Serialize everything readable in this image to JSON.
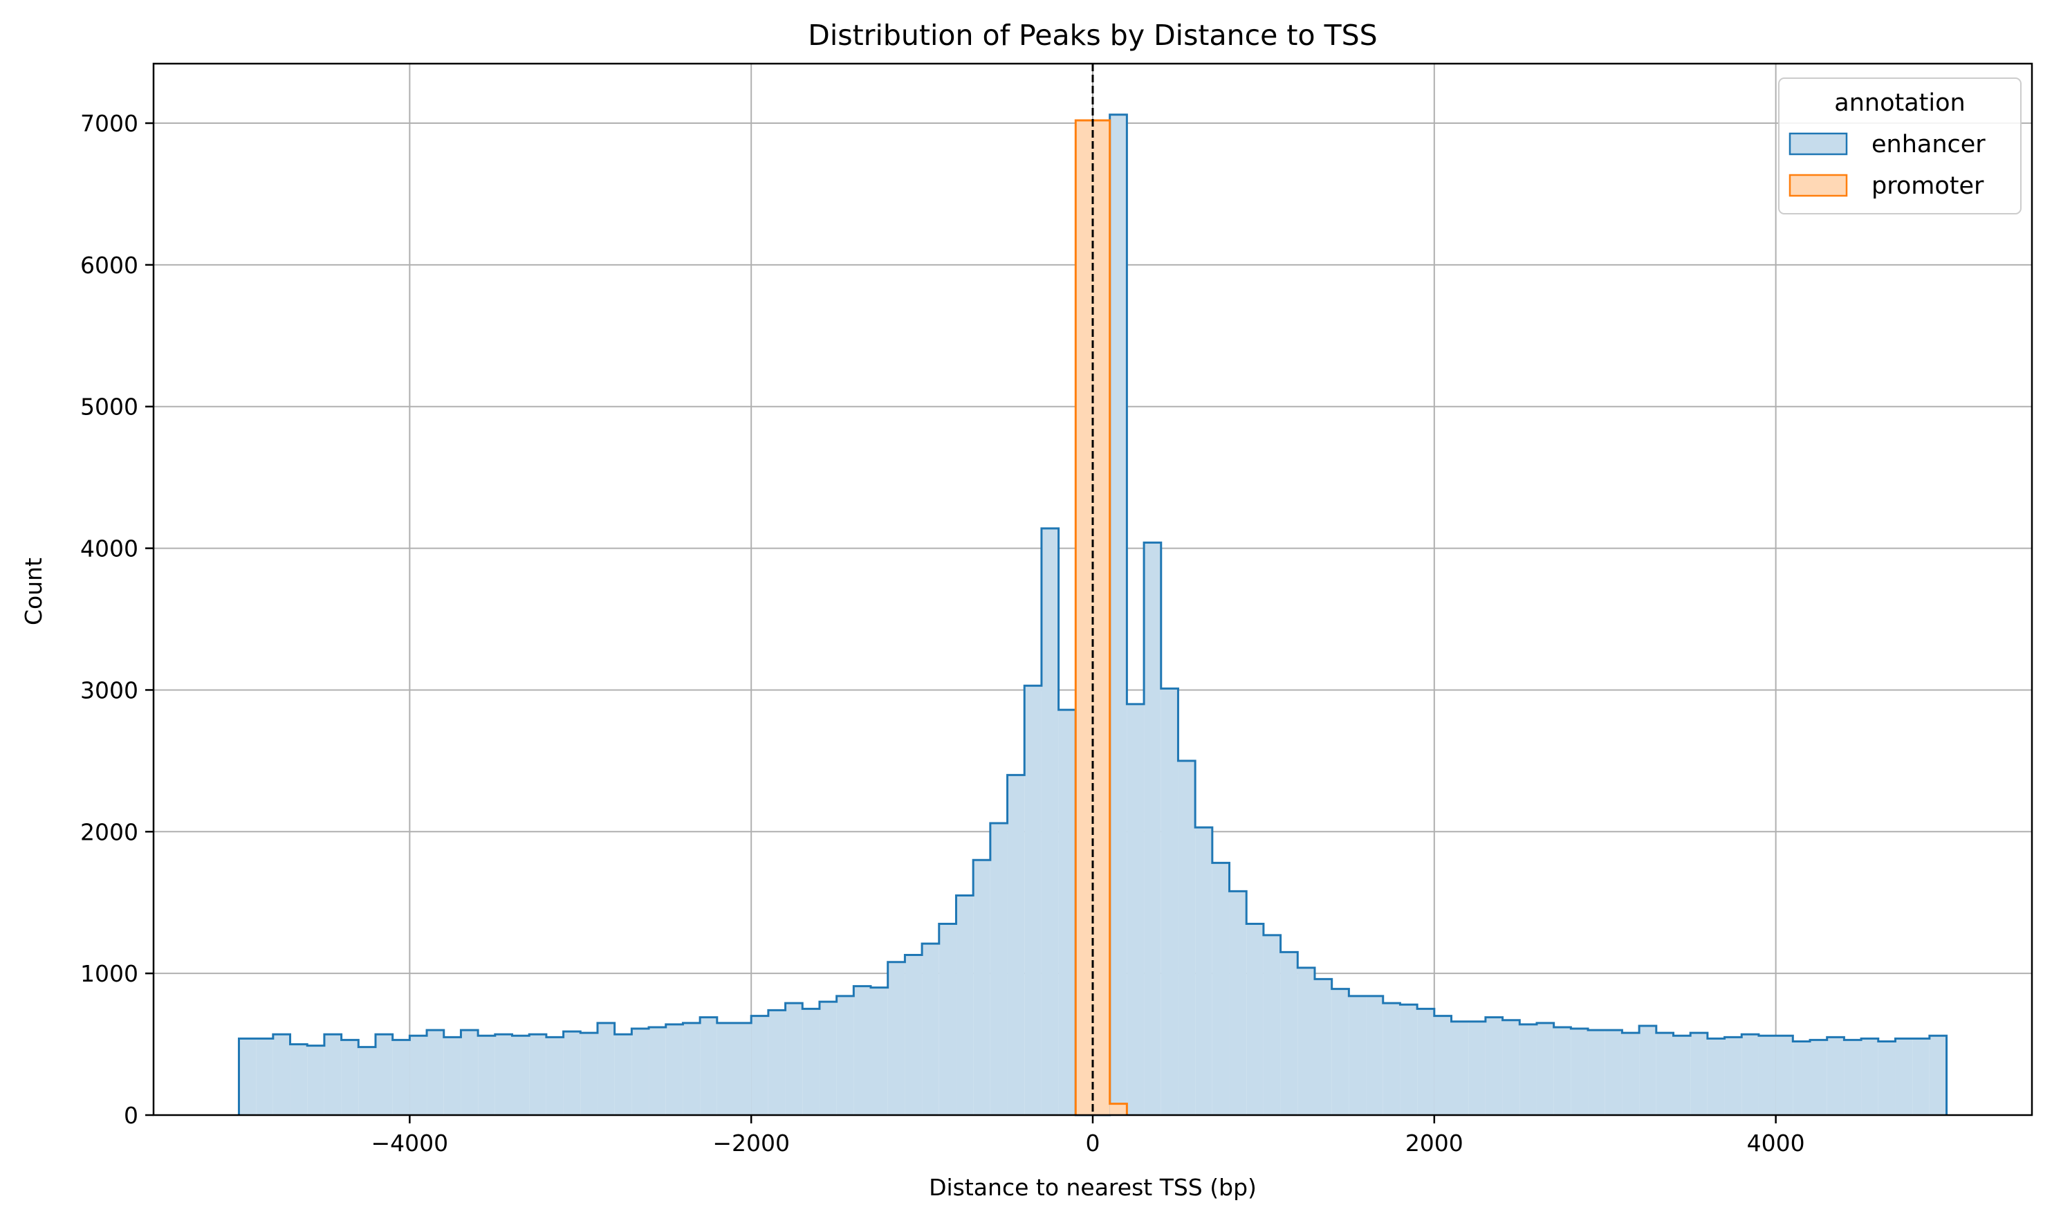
{
  "chart_data": {
    "type": "histogram",
    "title": "Distribution of Peaks by Distance to TSS",
    "xlabel": "Distance to nearest TSS (bp)",
    "ylabel": "Count",
    "xlim": [
      -5500,
      5500
    ],
    "ylim": [
      0,
      7420
    ],
    "xticks": [
      -4000,
      -2000,
      0,
      2000,
      4000
    ],
    "xtick_labels": [
      "−4000",
      "−2000",
      "0",
      "2000",
      "4000"
    ],
    "yticks": [
      0,
      1000,
      2000,
      3000,
      4000,
      5000,
      6000,
      7000
    ],
    "ytick_labels": [
      "0",
      "1000",
      "2000",
      "3000",
      "4000",
      "5000",
      "6000",
      "7000"
    ],
    "grid": true,
    "reference_line": {
      "x": 0,
      "style": "dashed",
      "color": "#000000"
    },
    "bins": {
      "start": -5000,
      "width": 100,
      "count": 100
    },
    "legend": {
      "title": "annotation",
      "placement": "top-right"
    },
    "series": [
      {
        "name": "enhancer",
        "color": "#1f77b4",
        "fill": "#c6dcec",
        "counts": [
          540,
          540,
          570,
          500,
          490,
          570,
          530,
          480,
          570,
          530,
          560,
          600,
          550,
          600,
          560,
          570,
          560,
          570,
          550,
          590,
          580,
          650,
          570,
          610,
          620,
          640,
          650,
          690,
          650,
          650,
          700,
          740,
          790,
          750,
          800,
          840,
          910,
          900,
          1080,
          1130,
          1210,
          1350,
          1550,
          1800,
          2060,
          2400,
          3030,
          4140,
          2860,
          0,
          0,
          7060,
          2900,
          4040,
          3010,
          2500,
          2030,
          1780,
          1580,
          1350,
          1270,
          1150,
          1040,
          960,
          890,
          840,
          840,
          790,
          780,
          750,
          700,
          660,
          660,
          690,
          670,
          640,
          650,
          620,
          610,
          600,
          600,
          580,
          630,
          580,
          560,
          580,
          540,
          550,
          570,
          560,
          560,
          520,
          530,
          550,
          530,
          540,
          520,
          540,
          540,
          560
        ]
      },
      {
        "name": "promoter",
        "color": "#ff7f0e",
        "fill": "#ffd8b5",
        "counts": [
          0,
          0,
          0,
          0,
          0,
          0,
          0,
          0,
          0,
          0,
          0,
          0,
          0,
          0,
          0,
          0,
          0,
          0,
          0,
          0,
          0,
          0,
          0,
          0,
          0,
          0,
          0,
          0,
          0,
          0,
          0,
          0,
          0,
          0,
          0,
          0,
          0,
          0,
          0,
          0,
          0,
          0,
          0,
          0,
          0,
          0,
          0,
          0,
          0,
          7020,
          7020,
          80,
          0,
          0,
          0,
          0,
          0,
          0,
          0,
          0,
          0,
          0,
          0,
          0,
          0,
          0,
          0,
          0,
          0,
          0,
          0,
          0,
          0,
          0,
          0,
          0,
          0,
          0,
          0,
          0,
          0,
          0,
          0,
          0,
          0,
          0,
          0,
          0,
          0,
          0,
          0,
          0,
          0,
          0,
          0,
          0,
          0,
          0,
          0,
          0
        ]
      }
    ]
  }
}
